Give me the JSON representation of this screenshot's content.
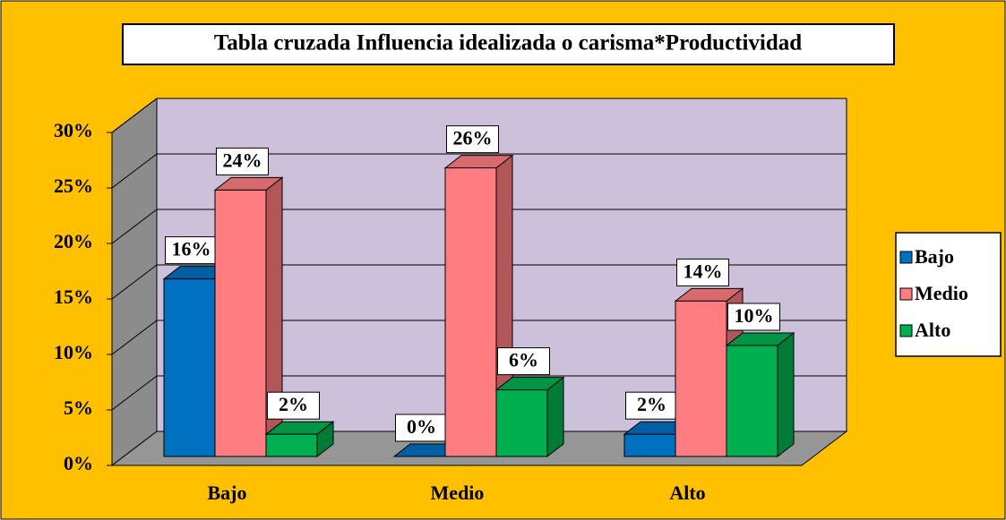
{
  "chart_data": {
    "type": "bar3d",
    "title": "Tabla cruzada Influencia idealizada o carisma*Productividad",
    "categories": [
      "Bajo",
      "Medio",
      "Alto"
    ],
    "series": [
      {
        "name": "Bajo",
        "color": "#0070C0",
        "values": [
          16,
          0,
          2
        ],
        "value_labels": [
          "16%",
          "0%",
          "2%"
        ]
      },
      {
        "name": "Medio",
        "color": "#FF7C80",
        "values": [
          24,
          26,
          14
        ],
        "value_labels": [
          "24%",
          "26%",
          "14%"
        ]
      },
      {
        "name": "Alto",
        "color": "#00B050",
        "values": [
          2,
          6,
          10
        ],
        "value_labels": [
          "2%",
          "6%",
          "10%"
        ]
      }
    ],
    "ylim": [
      0,
      30
    ],
    "yticks": [
      {
        "value": 0,
        "label": "0%"
      },
      {
        "value": 5,
        "label": "5%"
      },
      {
        "value": 10,
        "label": "10%"
      },
      {
        "value": 15,
        "label": "15%"
      },
      {
        "value": 20,
        "label": "20%"
      },
      {
        "value": 25,
        "label": "25%"
      },
      {
        "value": 30,
        "label": "30%"
      }
    ],
    "grid": true,
    "legend": "right"
  }
}
